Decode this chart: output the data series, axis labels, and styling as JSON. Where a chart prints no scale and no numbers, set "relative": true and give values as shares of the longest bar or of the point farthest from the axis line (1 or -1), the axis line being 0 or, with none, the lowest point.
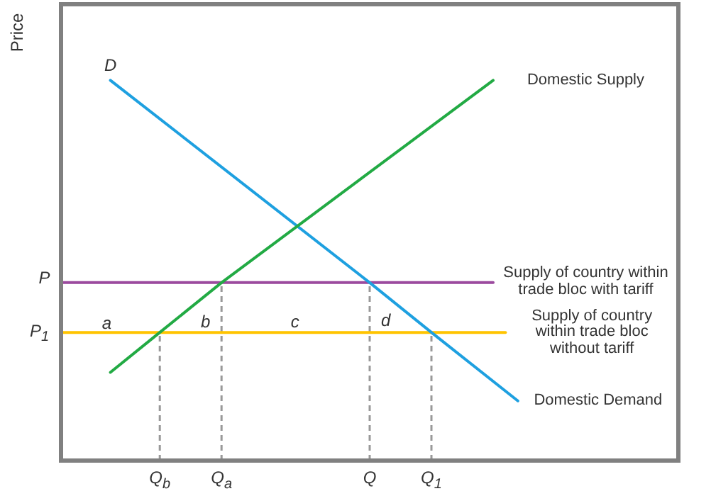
{
  "chart_data": {
    "type": "line",
    "ylabel": "Price",
    "relative": true,
    "grid": false,
    "marker": "none",
    "categories": [
      null,
      null,
      null,
      null,
      null,
      null,
      null,
      null,
      "Q$_{b}$",
      null,
      null,
      null,
      null,
      "Q$_{a}$",
      null,
      null,
      null,
      null,
      null,
      null,
      null,
      null,
      null,
      null,
      null,
      "Q",
      null,
      null,
      null,
      null,
      "Q$_{1}$",
      null,
      null,
      null,
      null,
      null,
      null,
      null,
      null,
      null,
      null,
      null,
      null,
      null,
      null,
      null,
      null,
      null,
      null,
      null,
      null
    ],
    "series": [
      {
        "name": "Domestic Supply",
        "color": "#22aa44",
        "values": [
          null,
          null,
          null,
          null,
          0.232,
          null,
          null,
          null,
          0.337,
          null,
          null,
          null,
          null,
          0.468,
          null,
          null,
          null,
          null,
          null,
          null,
          null,
          null,
          null,
          null,
          null,
          null,
          null,
          null,
          null,
          null,
          null,
          null,
          null,
          null,
          null,
          1,
          null,
          null,
          null,
          null,
          null,
          null,
          null,
          null,
          null,
          null,
          null,
          null,
          null,
          null,
          null
        ]
      },
      {
        "name": "Domestic Demand",
        "color": "#1ea0e0",
        "values": [
          null,
          null,
          null,
          null,
          1,
          null,
          null,
          null,
          null,
          null,
          null,
          null,
          null,
          null,
          null,
          null,
          null,
          null,
          null,
          null,
          null,
          null,
          null,
          null,
          null,
          0.468,
          null,
          null,
          null,
          null,
          0.337,
          null,
          null,
          null,
          null,
          null,
          null,
          0.157,
          null,
          null,
          null,
          null,
          null,
          null,
          null,
          null,
          null,
          null,
          null,
          null,
          null
        ]
      },
      {
        "name": "Supply of country within trade bloc with tariff",
        "color": "#9b4a9e",
        "values": [
          0.468,
          null,
          null,
          null,
          null,
          null,
          null,
          null,
          null,
          null,
          null,
          null,
          null,
          0.468,
          null,
          null,
          null,
          null,
          null,
          null,
          null,
          null,
          null,
          null,
          null,
          0.468,
          null,
          null,
          null,
          null,
          null,
          null,
          null,
          null,
          null,
          0.468,
          null,
          null,
          null,
          null,
          null,
          null,
          null,
          null,
          null,
          null,
          null,
          null,
          null,
          null,
          null
        ]
      },
      {
        "name": "Supply of country within trade bloc without tariff",
        "color": "#ffc400",
        "values": [
          0.337,
          null,
          null,
          null,
          null,
          null,
          null,
          null,
          0.337,
          null,
          null,
          null,
          null,
          null,
          null,
          null,
          null,
          null,
          null,
          null,
          null,
          null,
          null,
          null,
          null,
          null,
          null,
          null,
          null,
          null,
          0.337,
          null,
          null,
          null,
          null,
          null,
          0.337,
          null,
          null,
          null,
          null,
          null,
          null,
          null,
          null,
          null,
          null,
          null,
          null,
          null,
          null
        ]
      }
    ],
    "ref_lines": [
      {
        "axis": "x",
        "value": "Q$_{b}$",
        "color": "#999999",
        "line_style": "dashed"
      },
      {
        "axis": "x",
        "value": "Q$_{a}$",
        "color": "#999999",
        "line_style": "dashed"
      },
      {
        "axis": "x",
        "value": "Q",
        "color": "#999999",
        "line_style": "dashed"
      },
      {
        "axis": "x",
        "value": "Q$_{1}$",
        "color": "#999999",
        "line_style": "dashed"
      }
    ],
    "annotations": [
      "P",
      "P$_{1}$",
      "D",
      "a",
      "b",
      "c",
      "d"
    ]
  }
}
